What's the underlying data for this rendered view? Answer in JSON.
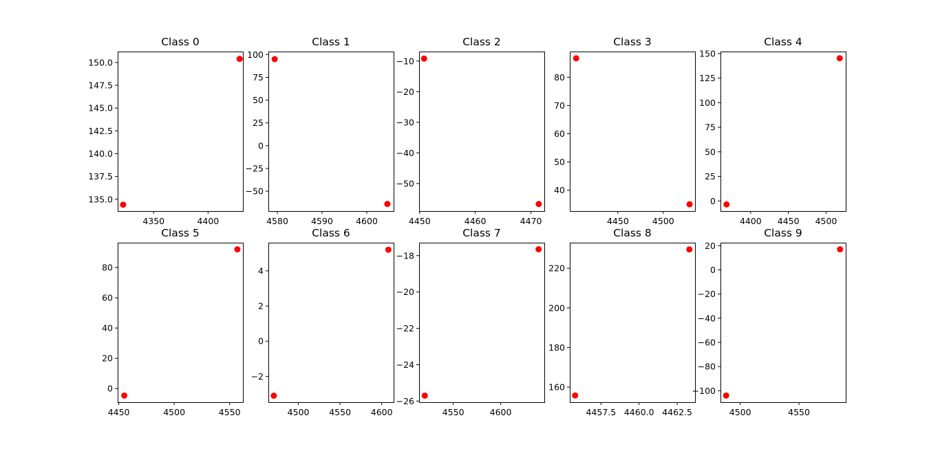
{
  "chart_data": [
    {
      "type": "scatter",
      "title": "Class 0",
      "xlabel": "",
      "ylabel": "",
      "x": [
        4322,
        4429
      ],
      "y": [
        134.4,
        150.4
      ],
      "xlim": [
        4317,
        4432
      ],
      "ylim": [
        133.7,
        151.2
      ],
      "xticks": [
        4350,
        4400
      ],
      "xtick_labels": [
        "4350",
        "4400"
      ],
      "yticks": [
        135.0,
        137.5,
        140.0,
        142.5,
        145.0,
        147.5,
        150.0
      ],
      "ytick_labels": [
        "135.0",
        "137.5",
        "140.0",
        "142.5",
        "145.0",
        "147.5",
        "150.0"
      ],
      "marker_color": "#ff0000",
      "grid": false
    },
    {
      "type": "scatter",
      "title": "Class 1",
      "xlabel": "",
      "ylabel": "",
      "x": [
        4579.4,
        4604.6
      ],
      "y": [
        95,
        -64
      ],
      "xlim": [
        4578.0,
        4606.0
      ],
      "ylim": [
        -71.8,
        103.3
      ],
      "xticks": [
        4580,
        4590,
        4600
      ],
      "xtick_labels": [
        "4580",
        "4590",
        "4600"
      ],
      "yticks": [
        -50,
        -25,
        0,
        25,
        50,
        75,
        100
      ],
      "ytick_labels": [
        "−50",
        "−25",
        "0",
        "25",
        "50",
        "75",
        "100"
      ],
      "marker_color": "#ff0000",
      "grid": false
    },
    {
      "type": "scatter",
      "title": "Class 2",
      "xlabel": "",
      "ylabel": "",
      "x": [
        4450.8,
        4471.4
      ],
      "y": [
        -9.2,
        -56.7
      ],
      "xlim": [
        4449.9,
        4472.4
      ],
      "ylim": [
        -59.0,
        -6.9
      ],
      "xticks": [
        4450,
        4460,
        4470
      ],
      "xtick_labels": [
        "4450",
        "4460",
        "4470"
      ],
      "yticks": [
        -50,
        -40,
        -30,
        -20,
        -10
      ],
      "ytick_labels": [
        "−50",
        "−40",
        "−30",
        "−20",
        "−10"
      ],
      "marker_color": "#ff0000",
      "grid": false
    },
    {
      "type": "scatter",
      "title": "Class 3",
      "xlabel": "",
      "ylabel": "",
      "x": [
        4404,
        4529
      ],
      "y": [
        86.7,
        35.0
      ],
      "xlim": [
        4397,
        4535
      ],
      "ylim": [
        32.6,
        89.1
      ],
      "xticks": [
        4450,
        4500
      ],
      "xtick_labels": [
        "4450",
        "4500"
      ],
      "yticks": [
        40,
        50,
        60,
        70,
        80
      ],
      "ytick_labels": [
        "40",
        "50",
        "60",
        "70",
        "80"
      ],
      "marker_color": "#ff0000",
      "grid": false
    },
    {
      "type": "scatter",
      "title": "Class 4",
      "xlabel": "",
      "ylabel": "",
      "x": [
        4368,
        4518
      ],
      "y": [
        -3.5,
        145.2
      ],
      "xlim": [
        4360,
        4526
      ],
      "ylim": [
        -10.3,
        152.0
      ],
      "xticks": [
        4400,
        4450,
        4500
      ],
      "xtick_labels": [
        "4400",
        "4450",
        "4500"
      ],
      "yticks": [
        0,
        25,
        50,
        75,
        100,
        125,
        150
      ],
      "ytick_labels": [
        "0",
        "25",
        "50",
        "75",
        "100",
        "125",
        "150"
      ],
      "marker_color": "#ff0000",
      "grid": false
    },
    {
      "type": "scatter",
      "title": "Class 5",
      "xlabel": "",
      "ylabel": "",
      "x": [
        4455,
        4557
      ],
      "y": [
        -4.6,
        92.0
      ],
      "xlim": [
        4449.0,
        4562.0
      ],
      "ylim": [
        -9.0,
        96.4
      ],
      "xticks": [
        4450,
        4500,
        4550
      ],
      "xtick_labels": [
        "4450",
        "4500",
        "4550"
      ],
      "yticks": [
        0,
        20,
        40,
        60,
        80
      ],
      "ytick_labels": [
        "0",
        "20",
        "40",
        "60",
        "80"
      ],
      "marker_color": "#ff0000",
      "grid": false
    },
    {
      "type": "scatter",
      "title": "Class 6",
      "xlabel": "",
      "ylabel": "",
      "x": [
        4470.5,
        4608.0
      ],
      "y": [
        -3.1,
        5.2
      ],
      "xlim": [
        4464.0,
        4614.3
      ],
      "ylim": [
        -3.47,
        5.6
      ],
      "xticks": [
        4500,
        4550,
        4600
      ],
      "xtick_labels": [
        "4500",
        "4550",
        "4600"
      ],
      "yticks": [
        -2,
        0,
        2,
        4
      ],
      "ytick_labels": [
        "−2",
        "0",
        "2",
        "4"
      ],
      "marker_color": "#ff0000",
      "grid": false
    },
    {
      "type": "scatter",
      "title": "Class 7",
      "xlabel": "",
      "ylabel": "",
      "x": [
        4520,
        4640
      ],
      "y": [
        -25.7,
        -17.65
      ],
      "xlim": [
        4514,
        4646
      ],
      "ylim": [
        -26.06,
        -17.29
      ],
      "xticks": [
        4550,
        4600
      ],
      "xtick_labels": [
        "4550",
        "4600"
      ],
      "yticks": [
        -26,
        -24,
        -22,
        -20,
        -18
      ],
      "ytick_labels": [
        "−26",
        "−24",
        "−22",
        "−20",
        "−18"
      ],
      "marker_color": "#ff0000",
      "grid": false
    },
    {
      "type": "scatter",
      "title": "Class 8",
      "xlabel": "",
      "ylabel": "",
      "x": [
        4455.8,
        4463.3
      ],
      "y": [
        155.8,
        229.5
      ],
      "xlim": [
        4455.45,
        4463.67
      ],
      "ylim": [
        152.4,
        232.9
      ],
      "xticks": [
        4457.5,
        4460.0,
        4462.5
      ],
      "xtick_labels": [
        "4457.5",
        "4460.0",
        "4462.5"
      ],
      "yticks": [
        160,
        180,
        200,
        220
      ],
      "ytick_labels": [
        "160",
        "180",
        "200",
        "220"
      ],
      "marker_color": "#ff0000",
      "grid": false
    },
    {
      "type": "scatter",
      "title": "Class 9",
      "xlabel": "",
      "ylabel": "",
      "x": [
        4488,
        4585
      ],
      "y": [
        -104,
        17
      ],
      "xlim": [
        4483.2,
        4589.8
      ],
      "ylim": [
        -109.5,
        22.5
      ],
      "xticks": [
        4500,
        4550
      ],
      "xtick_labels": [
        "4500",
        "4550"
      ],
      "yticks": [
        -100,
        -80,
        -60,
        -40,
        -20,
        0,
        20
      ],
      "ytick_labels": [
        "−100",
        "−80",
        "−60",
        "−40",
        "−20",
        "0",
        "20"
      ],
      "marker_color": "#ff0000",
      "grid": false
    }
  ]
}
